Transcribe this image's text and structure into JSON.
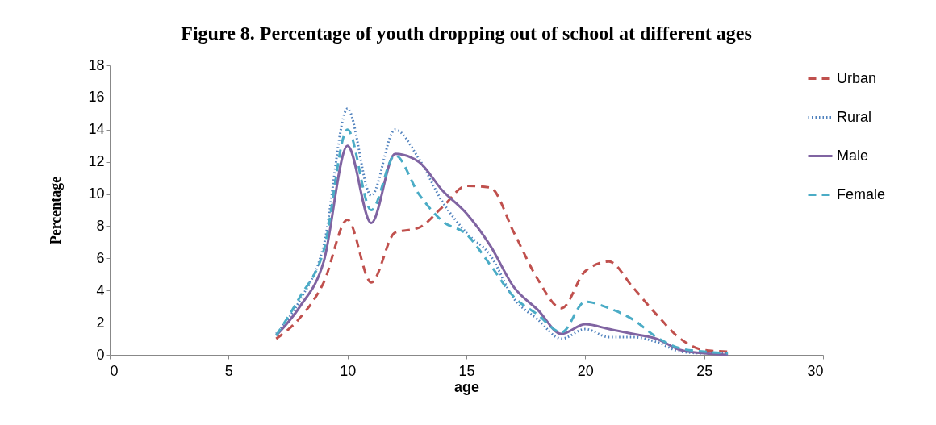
{
  "chart_data": {
    "type": "line",
    "title": "Figure 8. Percentage of youth dropping out of school at different ages",
    "xlabel": "age",
    "ylabel": "Percentage",
    "x": [
      7,
      8,
      9,
      10,
      11,
      12,
      13,
      14,
      15,
      16,
      17,
      18,
      19,
      20,
      21,
      22,
      23,
      24,
      25,
      26
    ],
    "series": [
      {
        "name": "Urban",
        "color": "#c0504d",
        "line_style": "dashed",
        "values": [
          1.0,
          2.3,
          4.5,
          8.4,
          4.5,
          7.6,
          7.9,
          9.2,
          10.5,
          10.4,
          7.6,
          4.7,
          2.9,
          5.2,
          5.8,
          4.2,
          2.5,
          1.0,
          0.3,
          0.2
        ]
      },
      {
        "name": "Rural",
        "color": "#4f81bd",
        "line_style": "dotted",
        "values": [
          1.3,
          3.4,
          6.8,
          15.3,
          9.9,
          14.0,
          12.2,
          9.5,
          7.6,
          6.2,
          3.5,
          2.2,
          1.0,
          1.6,
          1.1,
          1.1,
          0.8,
          0.2,
          0.1,
          0.1
        ]
      },
      {
        "name": "Male",
        "color": "#8064a2",
        "line_style": "solid",
        "values": [
          1.2,
          3.0,
          5.8,
          13.0,
          8.2,
          12.5,
          12.0,
          10.2,
          8.8,
          6.8,
          4.2,
          2.8,
          1.3,
          1.9,
          1.6,
          1.3,
          1.0,
          0.3,
          0.1,
          0.0
        ]
      },
      {
        "name": "Female",
        "color": "#4bacc6",
        "line_style": "dashed",
        "values": [
          1.2,
          3.6,
          6.5,
          14.0,
          9.0,
          12.4,
          10.0,
          8.3,
          7.5,
          5.6,
          3.6,
          2.5,
          1.4,
          3.3,
          2.9,
          2.2,
          1.1,
          0.4,
          0.2,
          0.1
        ]
      }
    ],
    "xlim": [
      0,
      30
    ],
    "xticks": [
      0,
      5,
      10,
      15,
      20,
      25,
      30
    ],
    "ylim": [
      0,
      18
    ],
    "yticks": [
      0,
      2,
      4,
      6,
      8,
      10,
      12,
      14,
      16,
      18
    ],
    "grid": false,
    "legend": "right",
    "marker": "none"
  }
}
